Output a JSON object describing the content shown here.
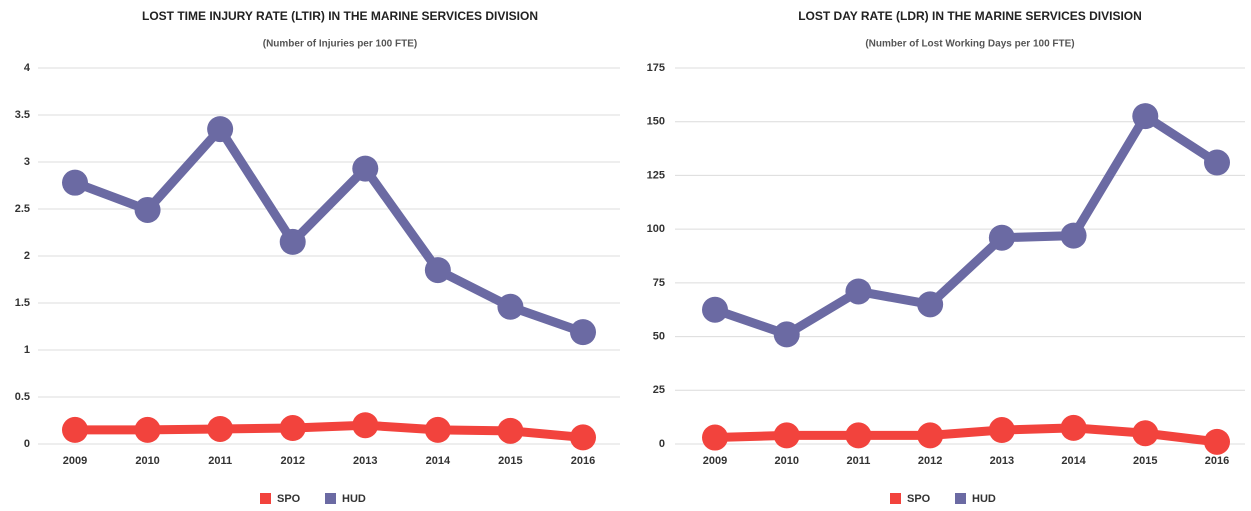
{
  "chart_data": [
    {
      "type": "line",
      "title": "LOST TIME INJURY RATE (LTIR) IN THE MARINE SERVICES DIVISION",
      "subtitle": "(Number of Injuries per 100 FTE)",
      "categories": [
        "2009",
        "2010",
        "2011",
        "2012",
        "2013",
        "2014",
        "2015",
        "2016"
      ],
      "series": [
        {
          "name": "SPO",
          "color": "#f2433d",
          "values": [
            0.15,
            0.15,
            0.16,
            0.17,
            0.2,
            0.15,
            0.14,
            0.07
          ]
        },
        {
          "name": "HUD",
          "color": "#6b6aa3",
          "values": [
            2.78,
            2.49,
            3.35,
            2.15,
            2.93,
            1.85,
            1.46,
            1.19
          ]
        }
      ],
      "ylim": [
        0,
        4
      ],
      "yticks": [
        0,
        0.5,
        1,
        1.5,
        2,
        2.5,
        3,
        3.5,
        4
      ],
      "grid": true,
      "legend": "bottom"
    },
    {
      "type": "line",
      "title": "LOST DAY RATE (LDR) IN THE MARINE SERVICES DIVISION",
      "subtitle": "(Number of Lost Working Days per 100 FTE)",
      "categories": [
        "2009",
        "2010",
        "2011",
        "2012",
        "2013",
        "2014",
        "2015",
        "2016"
      ],
      "series": [
        {
          "name": "SPO",
          "color": "#f2433d",
          "values": [
            3,
            4,
            4,
            4,
            6.5,
            7.5,
            5,
            1
          ]
        },
        {
          "name": "HUD",
          "color": "#6b6aa3",
          "values": [
            62.5,
            51,
            71,
            65,
            96,
            97,
            152.6,
            131
          ]
        }
      ],
      "ylim": [
        0,
        175
      ],
      "yticks": [
        0,
        25,
        50,
        75,
        100,
        125,
        150,
        175
      ],
      "grid": true,
      "legend": "bottom"
    }
  ]
}
